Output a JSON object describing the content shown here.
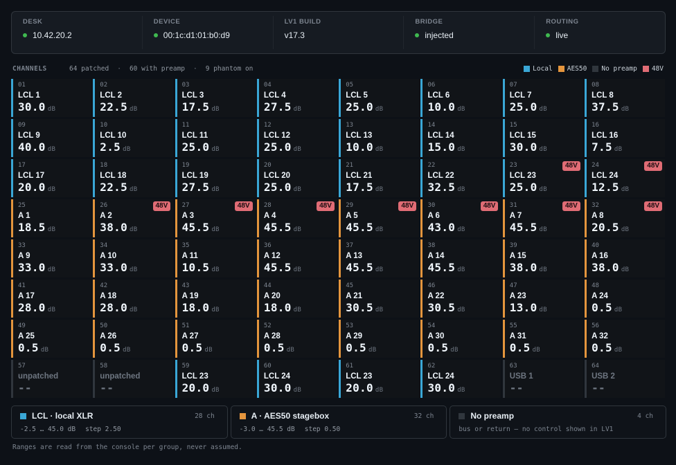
{
  "status": [
    {
      "label": "DESK",
      "value": "10.42.20.2",
      "dot": true
    },
    {
      "label": "DEVICE",
      "value": "00:1c:d1:01:b0:d9",
      "dot": true
    },
    {
      "label": "LV1 BUILD",
      "value": "v17.3",
      "dot": false
    },
    {
      "label": "BRIDGE",
      "value": "injected",
      "dot": true
    },
    {
      "label": "ROUTING",
      "value": "live",
      "dot": true
    }
  ],
  "channels_header": {
    "title": "CHANNELS",
    "patched": "64 patched",
    "with_preamp": "60 with preamp",
    "phantom": "9 phantom on",
    "separator": "·",
    "legend": [
      {
        "label": "Local",
        "color": "#3aa7d6"
      },
      {
        "label": "AES50",
        "color": "#e4953d"
      },
      {
        "label": "No preamp",
        "color": "#30363d"
      },
      {
        "label": "48V",
        "color": "#e06c75"
      }
    ]
  },
  "unit": "dB",
  "phantom_label": "48V",
  "channels": [
    {
      "num": "01",
      "name": "LCL 1",
      "value": "30.0",
      "type": "lcl",
      "phantom": false
    },
    {
      "num": "02",
      "name": "LCL 2",
      "value": "22.5",
      "type": "lcl",
      "phantom": false
    },
    {
      "num": "03",
      "name": "LCL 3",
      "value": "17.5",
      "type": "lcl",
      "phantom": false
    },
    {
      "num": "04",
      "name": "LCL 4",
      "value": "27.5",
      "type": "lcl",
      "phantom": false
    },
    {
      "num": "05",
      "name": "LCL 5",
      "value": "25.0",
      "type": "lcl",
      "phantom": false
    },
    {
      "num": "06",
      "name": "LCL 6",
      "value": "10.0",
      "type": "lcl",
      "phantom": false
    },
    {
      "num": "07",
      "name": "LCL 7",
      "value": "25.0",
      "type": "lcl",
      "phantom": false
    },
    {
      "num": "08",
      "name": "LCL 8",
      "value": "37.5",
      "type": "lcl",
      "phantom": false
    },
    {
      "num": "09",
      "name": "LCL 9",
      "value": "40.0",
      "type": "lcl",
      "phantom": false
    },
    {
      "num": "10",
      "name": "LCL 10",
      "value": "2.5",
      "type": "lcl",
      "phantom": false
    },
    {
      "num": "11",
      "name": "LCL 11",
      "value": "25.0",
      "type": "lcl",
      "phantom": false
    },
    {
      "num": "12",
      "name": "LCL 12",
      "value": "25.0",
      "type": "lcl",
      "phantom": false
    },
    {
      "num": "13",
      "name": "LCL 13",
      "value": "10.0",
      "type": "lcl",
      "phantom": false
    },
    {
      "num": "14",
      "name": "LCL 14",
      "value": "15.0",
      "type": "lcl",
      "phantom": false
    },
    {
      "num": "15",
      "name": "LCL 15",
      "value": "30.0",
      "type": "lcl",
      "phantom": false
    },
    {
      "num": "16",
      "name": "LCL 16",
      "value": "7.5",
      "type": "lcl",
      "phantom": false
    },
    {
      "num": "17",
      "name": "LCL 17",
      "value": "20.0",
      "type": "lcl",
      "phantom": false
    },
    {
      "num": "18",
      "name": "LCL 18",
      "value": "22.5",
      "type": "lcl",
      "phantom": false
    },
    {
      "num": "19",
      "name": "LCL 19",
      "value": "27.5",
      "type": "lcl",
      "phantom": false
    },
    {
      "num": "20",
      "name": "LCL 20",
      "value": "25.0",
      "type": "lcl",
      "phantom": false
    },
    {
      "num": "21",
      "name": "LCL 21",
      "value": "17.5",
      "type": "lcl",
      "phantom": false
    },
    {
      "num": "22",
      "name": "LCL 22",
      "value": "32.5",
      "type": "lcl",
      "phantom": false
    },
    {
      "num": "23",
      "name": "LCL 23",
      "value": "25.0",
      "type": "lcl",
      "phantom": true
    },
    {
      "num": "24",
      "name": "LCL 24",
      "value": "12.5",
      "type": "lcl",
      "phantom": true
    },
    {
      "num": "25",
      "name": "A 1",
      "value": "18.5",
      "type": "aes",
      "phantom": false
    },
    {
      "num": "26",
      "name": "A 2",
      "value": "38.0",
      "type": "aes",
      "phantom": true
    },
    {
      "num": "27",
      "name": "A 3",
      "value": "45.5",
      "type": "aes",
      "phantom": true
    },
    {
      "num": "28",
      "name": "A 4",
      "value": "45.5",
      "type": "aes",
      "phantom": true
    },
    {
      "num": "29",
      "name": "A 5",
      "value": "45.5",
      "type": "aes",
      "phantom": true
    },
    {
      "num": "30",
      "name": "A 6",
      "value": "43.0",
      "type": "aes",
      "phantom": true
    },
    {
      "num": "31",
      "name": "A 7",
      "value": "45.5",
      "type": "aes",
      "phantom": true
    },
    {
      "num": "32",
      "name": "A 8",
      "value": "20.5",
      "type": "aes",
      "phantom": true
    },
    {
      "num": "33",
      "name": "A 9",
      "value": "33.0",
      "type": "aes",
      "phantom": false
    },
    {
      "num": "34",
      "name": "A 10",
      "value": "33.0",
      "type": "aes",
      "phantom": false
    },
    {
      "num": "35",
      "name": "A 11",
      "value": "10.5",
      "type": "aes",
      "phantom": false
    },
    {
      "num": "36",
      "name": "A 12",
      "value": "45.5",
      "type": "aes",
      "phantom": false
    },
    {
      "num": "37",
      "name": "A 13",
      "value": "45.5",
      "type": "aes",
      "phantom": false
    },
    {
      "num": "38",
      "name": "A 14",
      "value": "45.5",
      "type": "aes",
      "phantom": false
    },
    {
      "num": "39",
      "name": "A 15",
      "value": "38.0",
      "type": "aes",
      "phantom": false
    },
    {
      "num": "40",
      "name": "A 16",
      "value": "38.0",
      "type": "aes",
      "phantom": false
    },
    {
      "num": "41",
      "name": "A 17",
      "value": "28.0",
      "type": "aes",
      "phantom": false
    },
    {
      "num": "42",
      "name": "A 18",
      "value": "28.0",
      "type": "aes",
      "phantom": false
    },
    {
      "num": "43",
      "name": "A 19",
      "value": "18.0",
      "type": "aes",
      "phantom": false
    },
    {
      "num": "44",
      "name": "A 20",
      "value": "18.0",
      "type": "aes",
      "phantom": false
    },
    {
      "num": "45",
      "name": "A 21",
      "value": "30.5",
      "type": "aes",
      "phantom": false
    },
    {
      "num": "46",
      "name": "A 22",
      "value": "30.5",
      "type": "aes",
      "phantom": false
    },
    {
      "num": "47",
      "name": "A 23",
      "value": "13.0",
      "type": "aes",
      "phantom": false
    },
    {
      "num": "48",
      "name": "A 24",
      "value": "0.5",
      "type": "aes",
      "phantom": false
    },
    {
      "num": "49",
      "name": "A 25",
      "value": "0.5",
      "type": "aes",
      "phantom": false
    },
    {
      "num": "50",
      "name": "A 26",
      "value": "0.5",
      "type": "aes",
      "phantom": false
    },
    {
      "num": "51",
      "name": "A 27",
      "value": "0.5",
      "type": "aes",
      "phantom": false
    },
    {
      "num": "52",
      "name": "A 28",
      "value": "0.5",
      "type": "aes",
      "phantom": false
    },
    {
      "num": "53",
      "name": "A 29",
      "value": "0.5",
      "type": "aes",
      "phantom": false
    },
    {
      "num": "54",
      "name": "A 30",
      "value": "0.5",
      "type": "aes",
      "phantom": false
    },
    {
      "num": "55",
      "name": "A 31",
      "value": "0.5",
      "type": "aes",
      "phantom": false
    },
    {
      "num": "56",
      "name": "A 32",
      "value": "0.5",
      "type": "aes",
      "phantom": false
    },
    {
      "num": "57",
      "name": "unpatched",
      "value": "--",
      "type": "none",
      "phantom": false
    },
    {
      "num": "58",
      "name": "unpatched",
      "value": "--",
      "type": "none",
      "phantom": false
    },
    {
      "num": "59",
      "name": "LCL 23",
      "value": "20.0",
      "type": "lcl",
      "phantom": false
    },
    {
      "num": "60",
      "name": "LCL 24",
      "value": "30.0",
      "type": "lcl",
      "phantom": false
    },
    {
      "num": "61",
      "name": "LCL 23",
      "value": "20.0",
      "type": "lcl",
      "phantom": false
    },
    {
      "num": "62",
      "name": "LCL 24",
      "value": "30.0",
      "type": "lcl",
      "phantom": false
    },
    {
      "num": "63",
      "name": "USB 1",
      "value": "--",
      "type": "none",
      "phantom": false
    },
    {
      "num": "64",
      "name": "USB 2",
      "value": "--",
      "type": "none",
      "phantom": false
    }
  ],
  "groups": [
    {
      "code": "LCL",
      "sep": "·",
      "name": "local XLR",
      "count": "28 ch",
      "range": "-2.5 … 45.0 dB",
      "step": "step 2.50",
      "color": "#3aa7d6"
    },
    {
      "code": "A",
      "sep": "·",
      "name": "AES50 stagebox",
      "count": "32 ch",
      "range": "-3.0 … 45.5 dB",
      "step": "step 0.50",
      "color": "#e4953d"
    },
    {
      "code": "",
      "sep": "",
      "name": "No preamp",
      "count": "4 ch",
      "range": "bus or return — no control shown in LV1",
      "step": "",
      "color": "#30363d"
    }
  ],
  "footnote": "Ranges are read from the console per group, never assumed."
}
